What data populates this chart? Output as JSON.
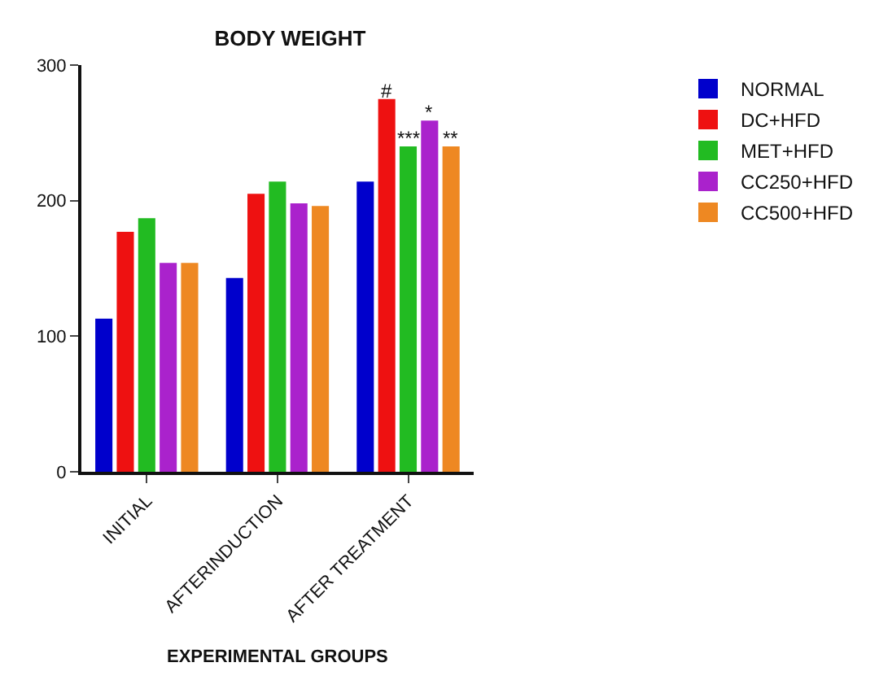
{
  "chart_data": {
    "type": "bar",
    "title": "BODY WEIGHT",
    "xlabel": "EXPERIMENTAL GROUPS",
    "categories": [
      "INITIAL",
      "AFTERINDUCTION",
      "AFTER TREATMENT"
    ],
    "series": [
      {
        "name": "NORMAL",
        "color": "#0000cc",
        "values": [
          113,
          143,
          214
        ]
      },
      {
        "name": "DC+HFD",
        "color": "#ee1111",
        "values": [
          177,
          205,
          275
        ]
      },
      {
        "name": "MET+HFD",
        "color": "#22bb22",
        "values": [
          187,
          214,
          240
        ]
      },
      {
        "name": "CC250+HFD",
        "color": "#aa22cc",
        "values": [
          154,
          198,
          259
        ]
      },
      {
        "name": "CC500+HFD",
        "color": "#ee8822",
        "values": [
          154,
          196,
          240
        ]
      }
    ],
    "annotations": [
      "#",
      "***",
      "*",
      "**"
    ],
    "ylim": [
      0,
      300
    ],
    "yticks": [
      0,
      100,
      200,
      300
    ],
    "legend": "top right"
  }
}
